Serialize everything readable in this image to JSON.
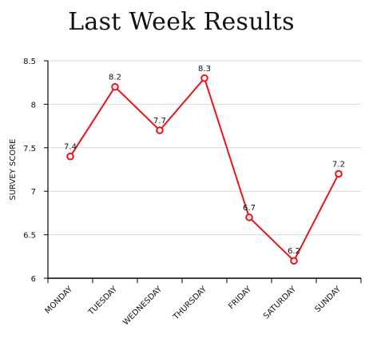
{
  "chart_data": {
    "type": "line",
    "title": "Last Week Results",
    "xlabel": "",
    "ylabel": "SURVEY SCORE",
    "categories": [
      "MONDAY",
      "TUESDAY",
      "WEDNESDAY",
      "THURSDAY",
      "FRIDAY",
      "SATURDAY",
      "SUNDAY"
    ],
    "values": [
      7.4,
      8.2,
      7.7,
      8.3,
      6.7,
      6.2,
      7.2
    ],
    "data_labels": [
      "7.4",
      "8.2",
      "7.7",
      "8.3",
      "6.7",
      "6.2",
      "7.2"
    ],
    "ylim": [
      6,
      8.5
    ],
    "yticks": [
      "6",
      "6.5",
      "7",
      "7.5",
      "8",
      "8.5"
    ],
    "grid": true,
    "legend": "none",
    "colors": {
      "line": "#e8141b",
      "marker_fill": "#ffffff",
      "grid": "#d9d9d9",
      "axis": "#000000"
    }
  }
}
